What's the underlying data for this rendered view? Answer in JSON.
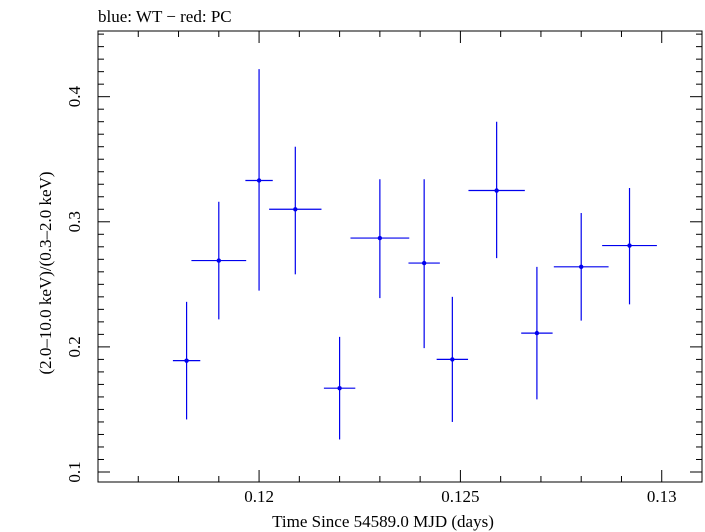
{
  "chart_data": {
    "type": "scatter",
    "title": "blue: WT − red: PC",
    "xlabel": "Time Since 54589.0 MJD (days)",
    "ylabel": "(2.0–10.0 keV)/(0.3–2.0 keV)",
    "xlim": [
      0.116,
      0.131
    ],
    "ylim": [
      0.092,
      0.4525
    ],
    "xticks": [
      {
        "value": 0.12,
        "label": "0.12"
      },
      {
        "value": 0.125,
        "label": "0.125"
      },
      {
        "value": 0.13,
        "label": "0.13"
      }
    ],
    "yticks": [
      {
        "value": 0.1,
        "label": "0.1"
      },
      {
        "value": 0.2,
        "label": "0.2"
      },
      {
        "value": 0.3,
        "label": "0.3"
      },
      {
        "value": 0.4,
        "label": "0.4"
      }
    ],
    "grid": false,
    "series": [
      {
        "name": "WT",
        "color": "#0000ee",
        "points": [
          {
            "x": 0.1182,
            "xerr": 0.00034,
            "y": 0.189,
            "ylo": 0.142,
            "yhi": 0.236
          },
          {
            "x": 0.119,
            "xerr": 0.00068,
            "y": 0.269,
            "ylo": 0.222,
            "yhi": 0.316
          },
          {
            "x": 0.12,
            "xerr": 0.00034,
            "y": 0.333,
            "ylo": 0.245,
            "yhi": 0.422
          },
          {
            "x": 0.1209,
            "xerr": 0.00065,
            "y": 0.31,
            "ylo": 0.258,
            "yhi": 0.36
          },
          {
            "x": 0.122,
            "xerr": 0.00039,
            "y": 0.167,
            "ylo": 0.126,
            "yhi": 0.208
          },
          {
            "x": 0.123,
            "xerr": 0.00073,
            "y": 0.287,
            "ylo": 0.239,
            "yhi": 0.334
          },
          {
            "x": 0.1241,
            "xerr": 0.00039,
            "y": 0.267,
            "ylo": 0.199,
            "yhi": 0.334
          },
          {
            "x": 0.1248,
            "xerr": 0.00039,
            "y": 0.19,
            "ylo": 0.14,
            "yhi": 0.24
          },
          {
            "x": 0.1259,
            "xerr": 0.0007,
            "y": 0.325,
            "ylo": 0.271,
            "yhi": 0.38
          },
          {
            "x": 0.1269,
            "xerr": 0.00039,
            "y": 0.211,
            "ylo": 0.158,
            "yhi": 0.264
          },
          {
            "x": 0.128,
            "xerr": 0.00068,
            "y": 0.264,
            "ylo": 0.221,
            "yhi": 0.307
          },
          {
            "x": 0.1292,
            "xerr": 0.00068,
            "y": 0.281,
            "ylo": 0.234,
            "yhi": 0.327
          }
        ]
      }
    ]
  }
}
